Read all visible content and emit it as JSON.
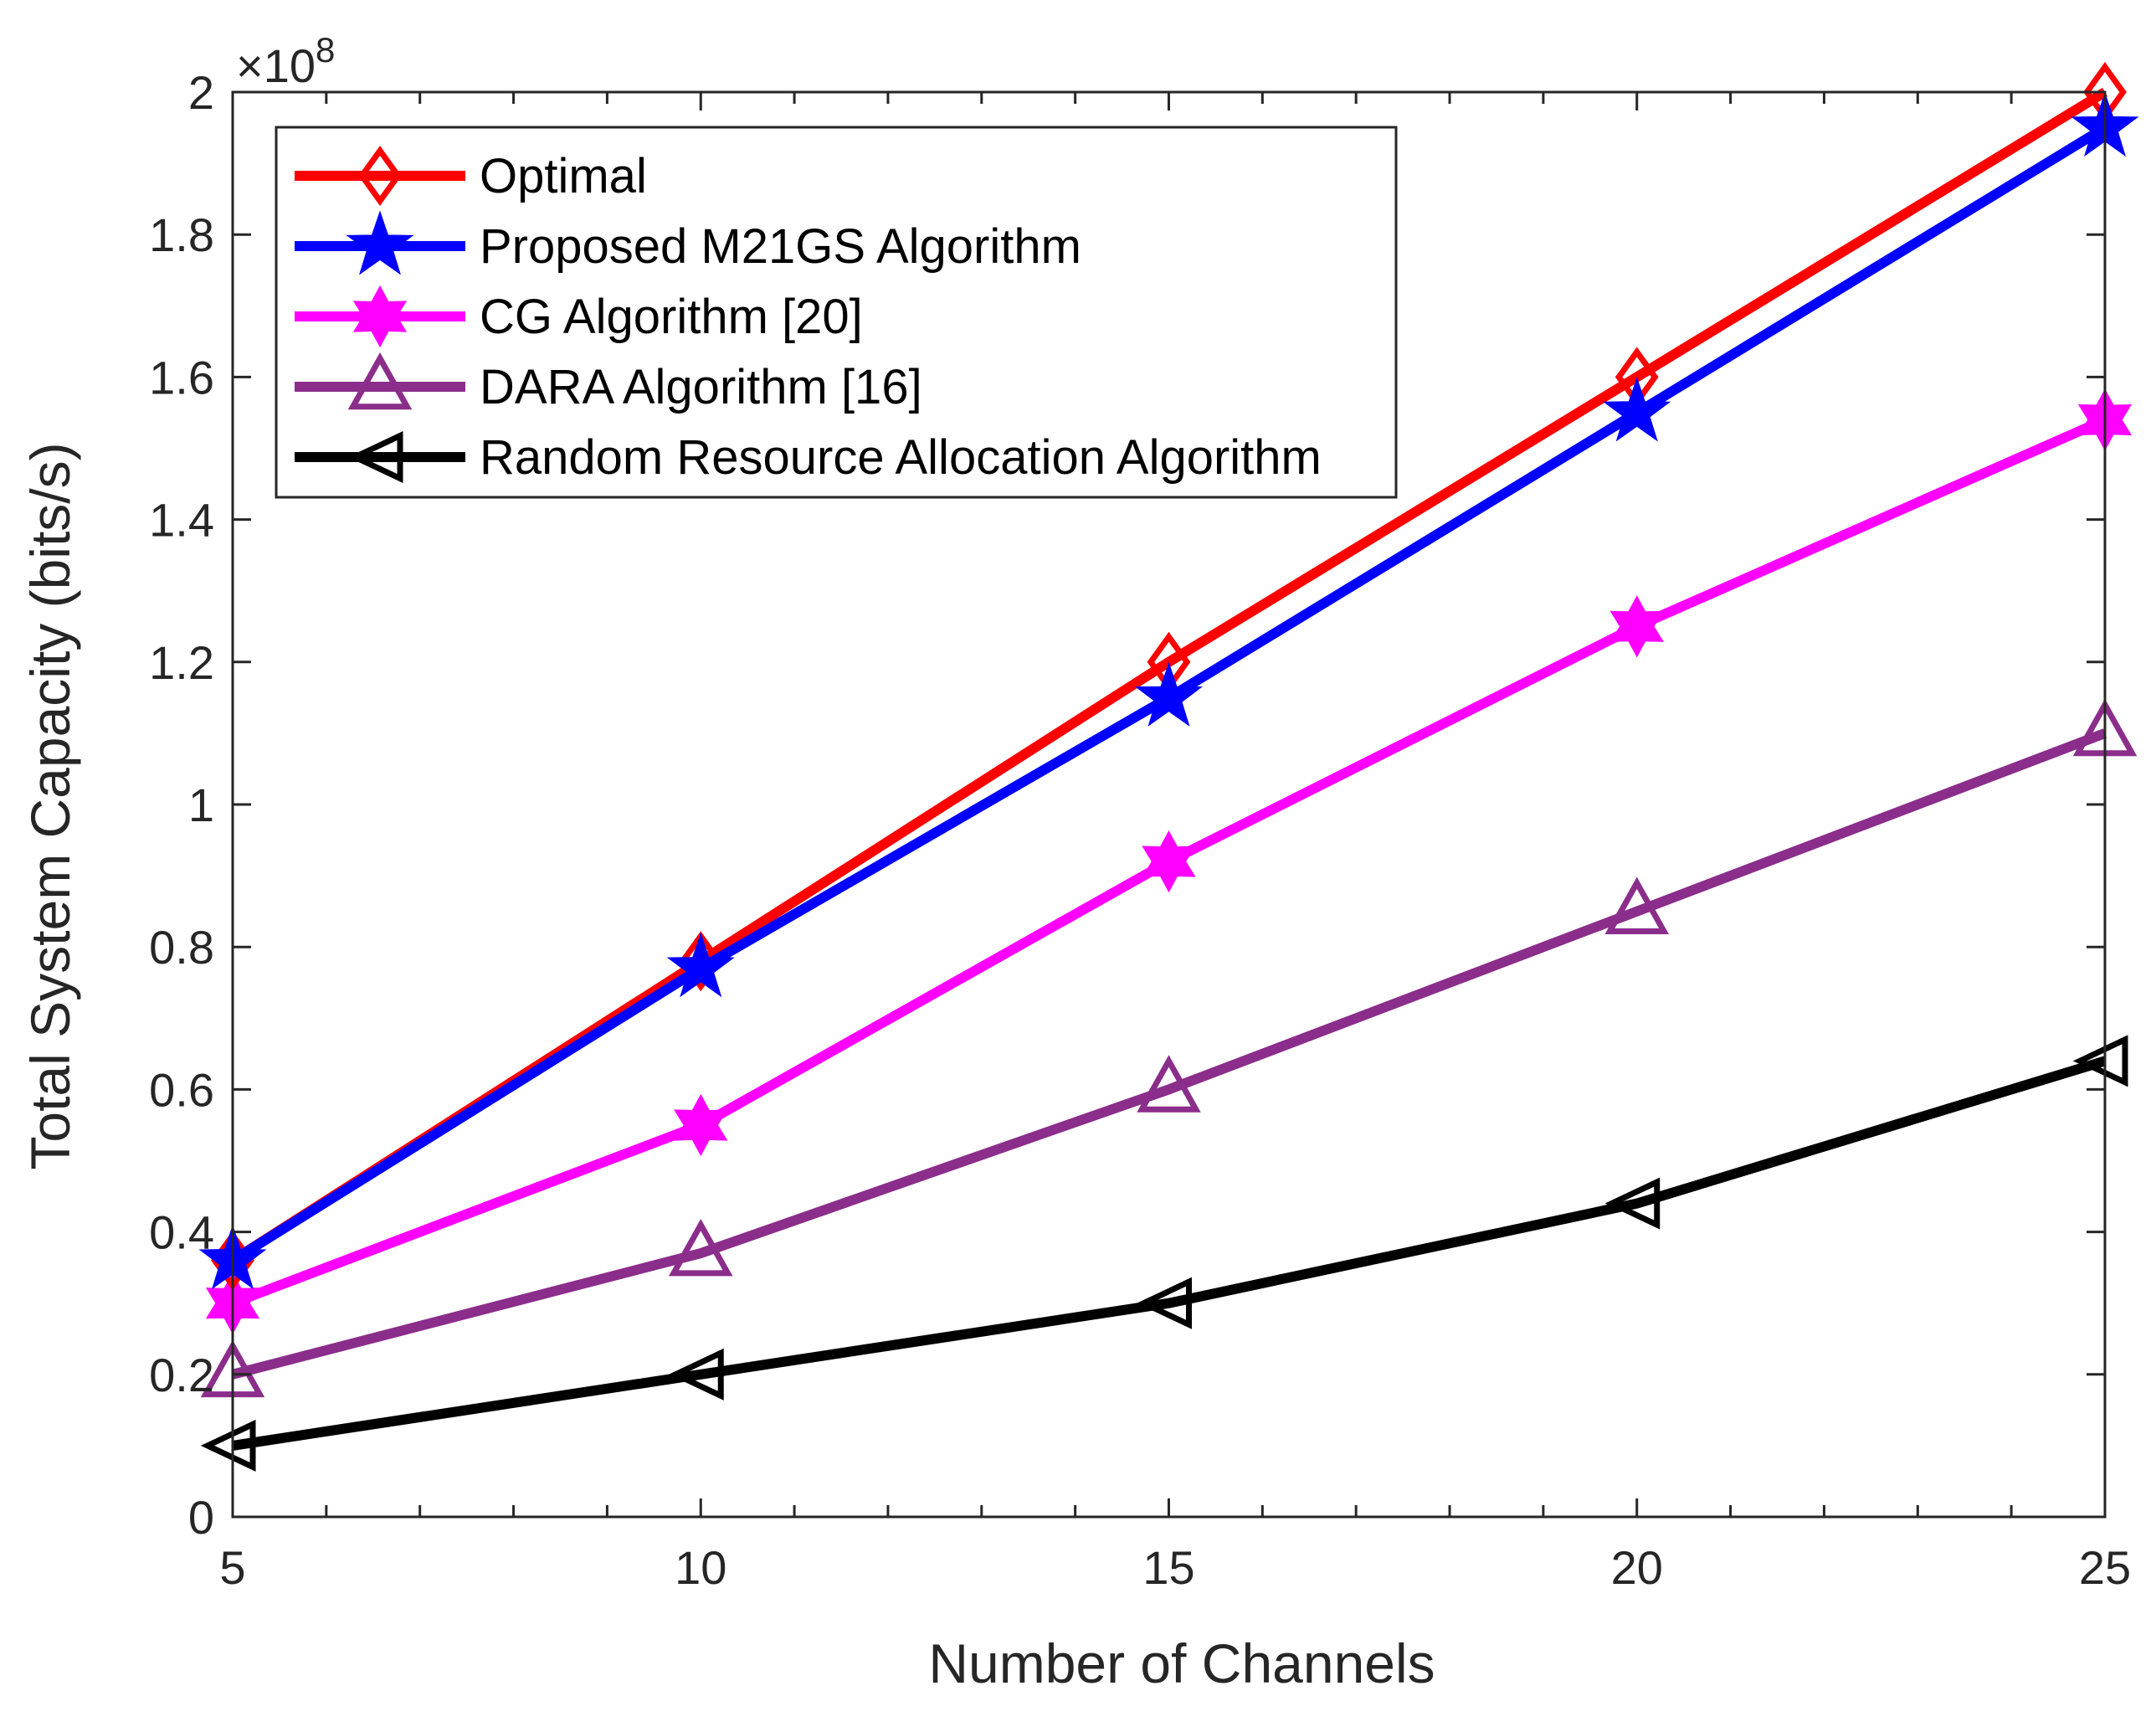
{
  "chart_data": {
    "type": "line",
    "title": "",
    "xlabel": "Number of Channels",
    "ylabel": "Total System Capacity (bits/s)",
    "y_multiplier_base": "×10",
    "y_multiplier_exp": "8",
    "xlim": [
      5,
      25
    ],
    "ylim": [
      0,
      2
    ],
    "x": [
      5,
      10,
      15,
      20,
      25
    ],
    "x_tick_labels": [
      "5",
      "10",
      "15",
      "20",
      "25"
    ],
    "y_tick_labels": [
      "0",
      "0.2",
      "0.4",
      "0.6",
      "0.8",
      "1",
      "1.2",
      "1.4",
      "1.6",
      "1.8",
      "2"
    ],
    "y_tick_values": [
      0,
      0.2,
      0.4,
      0.6,
      0.8,
      1.0,
      1.2,
      1.4,
      1.6,
      1.8,
      2.0
    ],
    "grid": false,
    "legend_location": "top-left",
    "series": [
      {
        "name": "Optimal",
        "color": "#ff0000",
        "marker": "diamond",
        "values": [
          0.36,
          0.78,
          1.2,
          1.6,
          2.0
        ]
      },
      {
        "name": "Proposed M21GS Algorithm",
        "color": "#0000ff",
        "marker": "pentagram",
        "values": [
          0.36,
          0.77,
          1.15,
          1.55,
          1.95
        ]
      },
      {
        "name": "CG Algorithm [20]",
        "color": "#ff00ff",
        "marker": "hexagram",
        "values": [
          0.3,
          0.55,
          0.92,
          1.25,
          1.54
        ]
      },
      {
        "name": "DARA Algorithm [16]",
        "color": "#8b2d8b",
        "marker": "triangle-up",
        "values": [
          0.2,
          0.37,
          0.6,
          0.85,
          1.1
        ]
      },
      {
        "name": "Random Resource Allocation Algorithm",
        "color": "#000000",
        "marker": "triangle-left",
        "values": [
          0.1,
          0.2,
          0.3,
          0.44,
          0.64
        ]
      }
    ]
  }
}
